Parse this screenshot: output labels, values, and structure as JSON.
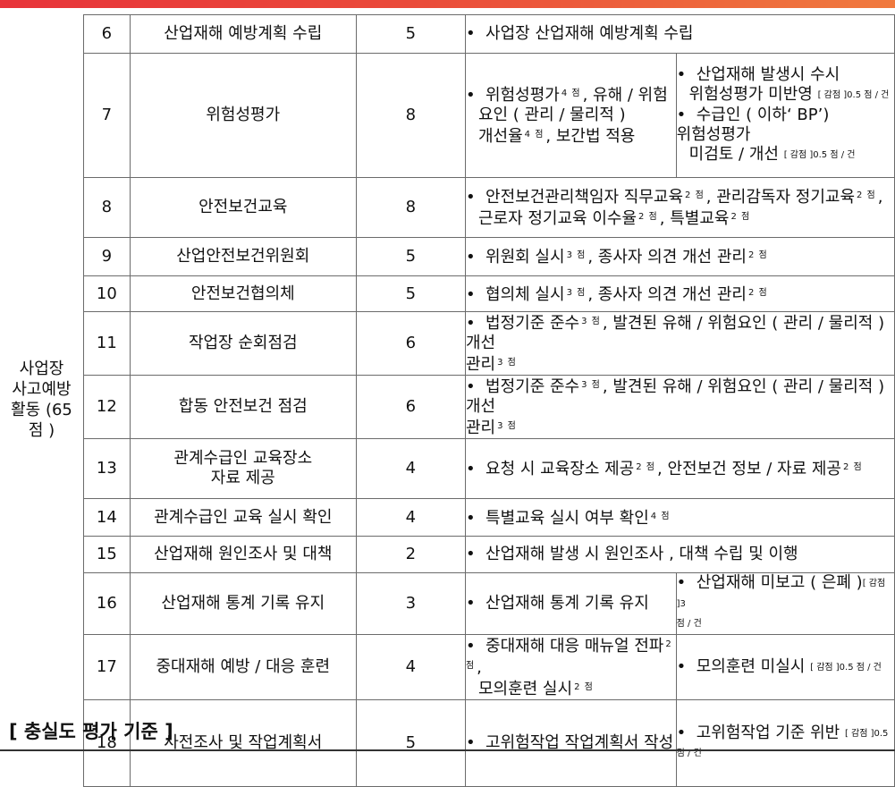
{
  "category": "사업장\n사고예방\n활동 (65\n점 )",
  "rows": [
    {
      "no": "6",
      "item": "산업재해 예방계획 수립",
      "score": "5",
      "bullet": "•",
      "text": "사업장 산업재해 예방계획 수립"
    },
    {
      "no": "7",
      "item": "위험성평가",
      "score": "8",
      "a1": "위험성평가",
      "p1": "4 점",
      "a2": ", 유해 / 위험",
      "a3": "요인 ( 관리 / 물리적 )",
      "a4": "개선율",
      "p2": "4 점",
      "a5": ", 보간법 적용",
      "b1": "산업재해 발생시 수시",
      "b2": "위험성평가 미반영",
      "bd1": "[ 감점 ]0.5 점 / 건",
      "b3": "수급인 ( 이하‘ BP’)",
      "b4": "위험성평가",
      "b5": "미검토 / 개선",
      "bd2": "[ 감점 ]0.5 점 / 건"
    },
    {
      "no": "8",
      "item": "안전보건교육",
      "score": "8",
      "t1": "안전보건관리책임자 직무교육",
      "p1": "2 점",
      "t2": ", 관리감독자 정기교육",
      "p2": "2 점",
      "t3": ",",
      "t4": "근로자 정기교육 이수율",
      "p3": "2 점",
      "t5": ", 특별교육",
      "p4": "2 점"
    },
    {
      "no": "9",
      "item": "산업안전보건위원회",
      "score": "5",
      "t1": "위원회 실시",
      "p1": "3 점",
      "t2": ", 종사자 의견 개선 관리",
      "p2": "2 점"
    },
    {
      "no": "10",
      "item": "안전보건협의체",
      "score": "5",
      "t1": "협의체 실시",
      "p1": "3 점",
      "t2": ", 종사자 의견 개선 관리",
      "p2": "2 점"
    },
    {
      "no": "11",
      "item": "작업장 순회점검",
      "score": "6",
      "t1": "법정기준 준수",
      "p1": "3 점",
      "t2": ", 발견된 유해 / 위험요인 ( 관리 / 물리적 ) 개선",
      "t3": "관리",
      "p2": "3 점"
    },
    {
      "no": "12",
      "item": "합동 안전보건 점검",
      "score": "6",
      "t1": "법정기준 준수",
      "p1": "3 점",
      "t2": ", 발견된 유해 / 위험요인 ( 관리 / 물리적 ) 개선",
      "t3": "관리",
      "p2": "3 점"
    },
    {
      "no": "13",
      "item": "관계수급인 교육장소\n자료 제공",
      "score": "4",
      "t1": "요청 시 교육장소 제공",
      "p1": "2 점",
      "t2": ", 안전보건 정보 / 자료 제공",
      "p2": "2 점"
    },
    {
      "no": "14",
      "item": "관계수급인 교육 실시 확인",
      "score": "4",
      "t1": "특별교육 실시 여부 확인",
      "p1": "4 점"
    },
    {
      "no": "15",
      "item": "산업재해 원인조사 및 대책",
      "score": "2",
      "t1": "산업재해 발생 시 원인조사 , 대책 수립 및 이행"
    },
    {
      "no": "16",
      "item": "산업재해 통계 기록 유지",
      "score": "3",
      "t1": "산업재해 통계 기록 유지",
      "b1": "산업재해 미보고 ( 은폐 )",
      "bd1": "[ 감점 ]3",
      "bd2": "점 / 건"
    },
    {
      "no": "17",
      "item": "중대재해 예방 / 대응 훈련",
      "score": "4",
      "t1": "중대재해 대응 매뉴얼 전파",
      "p1": "2 점",
      "t2": ",",
      "t3": "모의훈련 실시",
      "p2": "2 점",
      "b1": "모의훈련 미실시",
      "bd1": "[ 감점 ]0.5 점 / 건"
    },
    {
      "no": "18",
      "item": "사전조사 및 작업계획서",
      "score": "5",
      "t1": "고위험작업 작업계획서 작성",
      "b1": "고위험작업 기준 위반",
      "bd1": "[ 감점 ]0.5",
      "bd2": "점 / 건"
    }
  ],
  "footer": "[ 충실도 평가 기준 ]"
}
